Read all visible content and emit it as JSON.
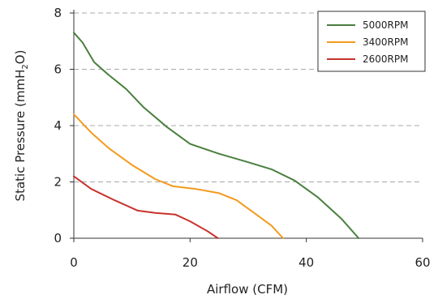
{
  "chart_data": {
    "type": "line",
    "xlabel": "Airflow (CFM)",
    "ylabel_parts": [
      "Static Pressure (mmH",
      "2",
      "O)"
    ],
    "xlim": [
      0,
      60
    ],
    "ylim": [
      0,
      8
    ],
    "xticks": [
      0,
      20,
      40,
      60
    ],
    "yticks": [
      0,
      2,
      4,
      6,
      8
    ],
    "grid": "horizontal dashed",
    "legend_position": "top-right",
    "series": [
      {
        "name": "5000RPM",
        "color": "#4a7f3e",
        "points": [
          [
            0,
            7.3
          ],
          [
            1.5,
            6.95
          ],
          [
            3.5,
            6.25
          ],
          [
            6,
            5.8
          ],
          [
            9,
            5.3
          ],
          [
            12,
            4.65
          ],
          [
            16,
            3.95
          ],
          [
            20,
            3.35
          ],
          [
            25,
            3.0
          ],
          [
            30,
            2.7
          ],
          [
            34,
            2.45
          ],
          [
            38,
            2.05
          ],
          [
            42,
            1.45
          ],
          [
            46,
            0.7
          ],
          [
            49,
            0.0
          ]
        ]
      },
      {
        "name": "3400RPM",
        "color": "#f39a1e",
        "points": [
          [
            0,
            4.4
          ],
          [
            3,
            3.75
          ],
          [
            6,
            3.2
          ],
          [
            10,
            2.6
          ],
          [
            14,
            2.1
          ],
          [
            17,
            1.85
          ],
          [
            21,
            1.75
          ],
          [
            25,
            1.6
          ],
          [
            28,
            1.35
          ],
          [
            31,
            0.9
          ],
          [
            34,
            0.45
          ],
          [
            36,
            0.0
          ]
        ]
      },
      {
        "name": "2600RPM",
        "color": "#c8322d",
        "points": [
          [
            0,
            2.2
          ],
          [
            3,
            1.75
          ],
          [
            7,
            1.35
          ],
          [
            11,
            0.98
          ],
          [
            14,
            0.9
          ],
          [
            17.5,
            0.84
          ],
          [
            20,
            0.6
          ],
          [
            23,
            0.25
          ],
          [
            24.8,
            0.0
          ]
        ]
      }
    ]
  }
}
